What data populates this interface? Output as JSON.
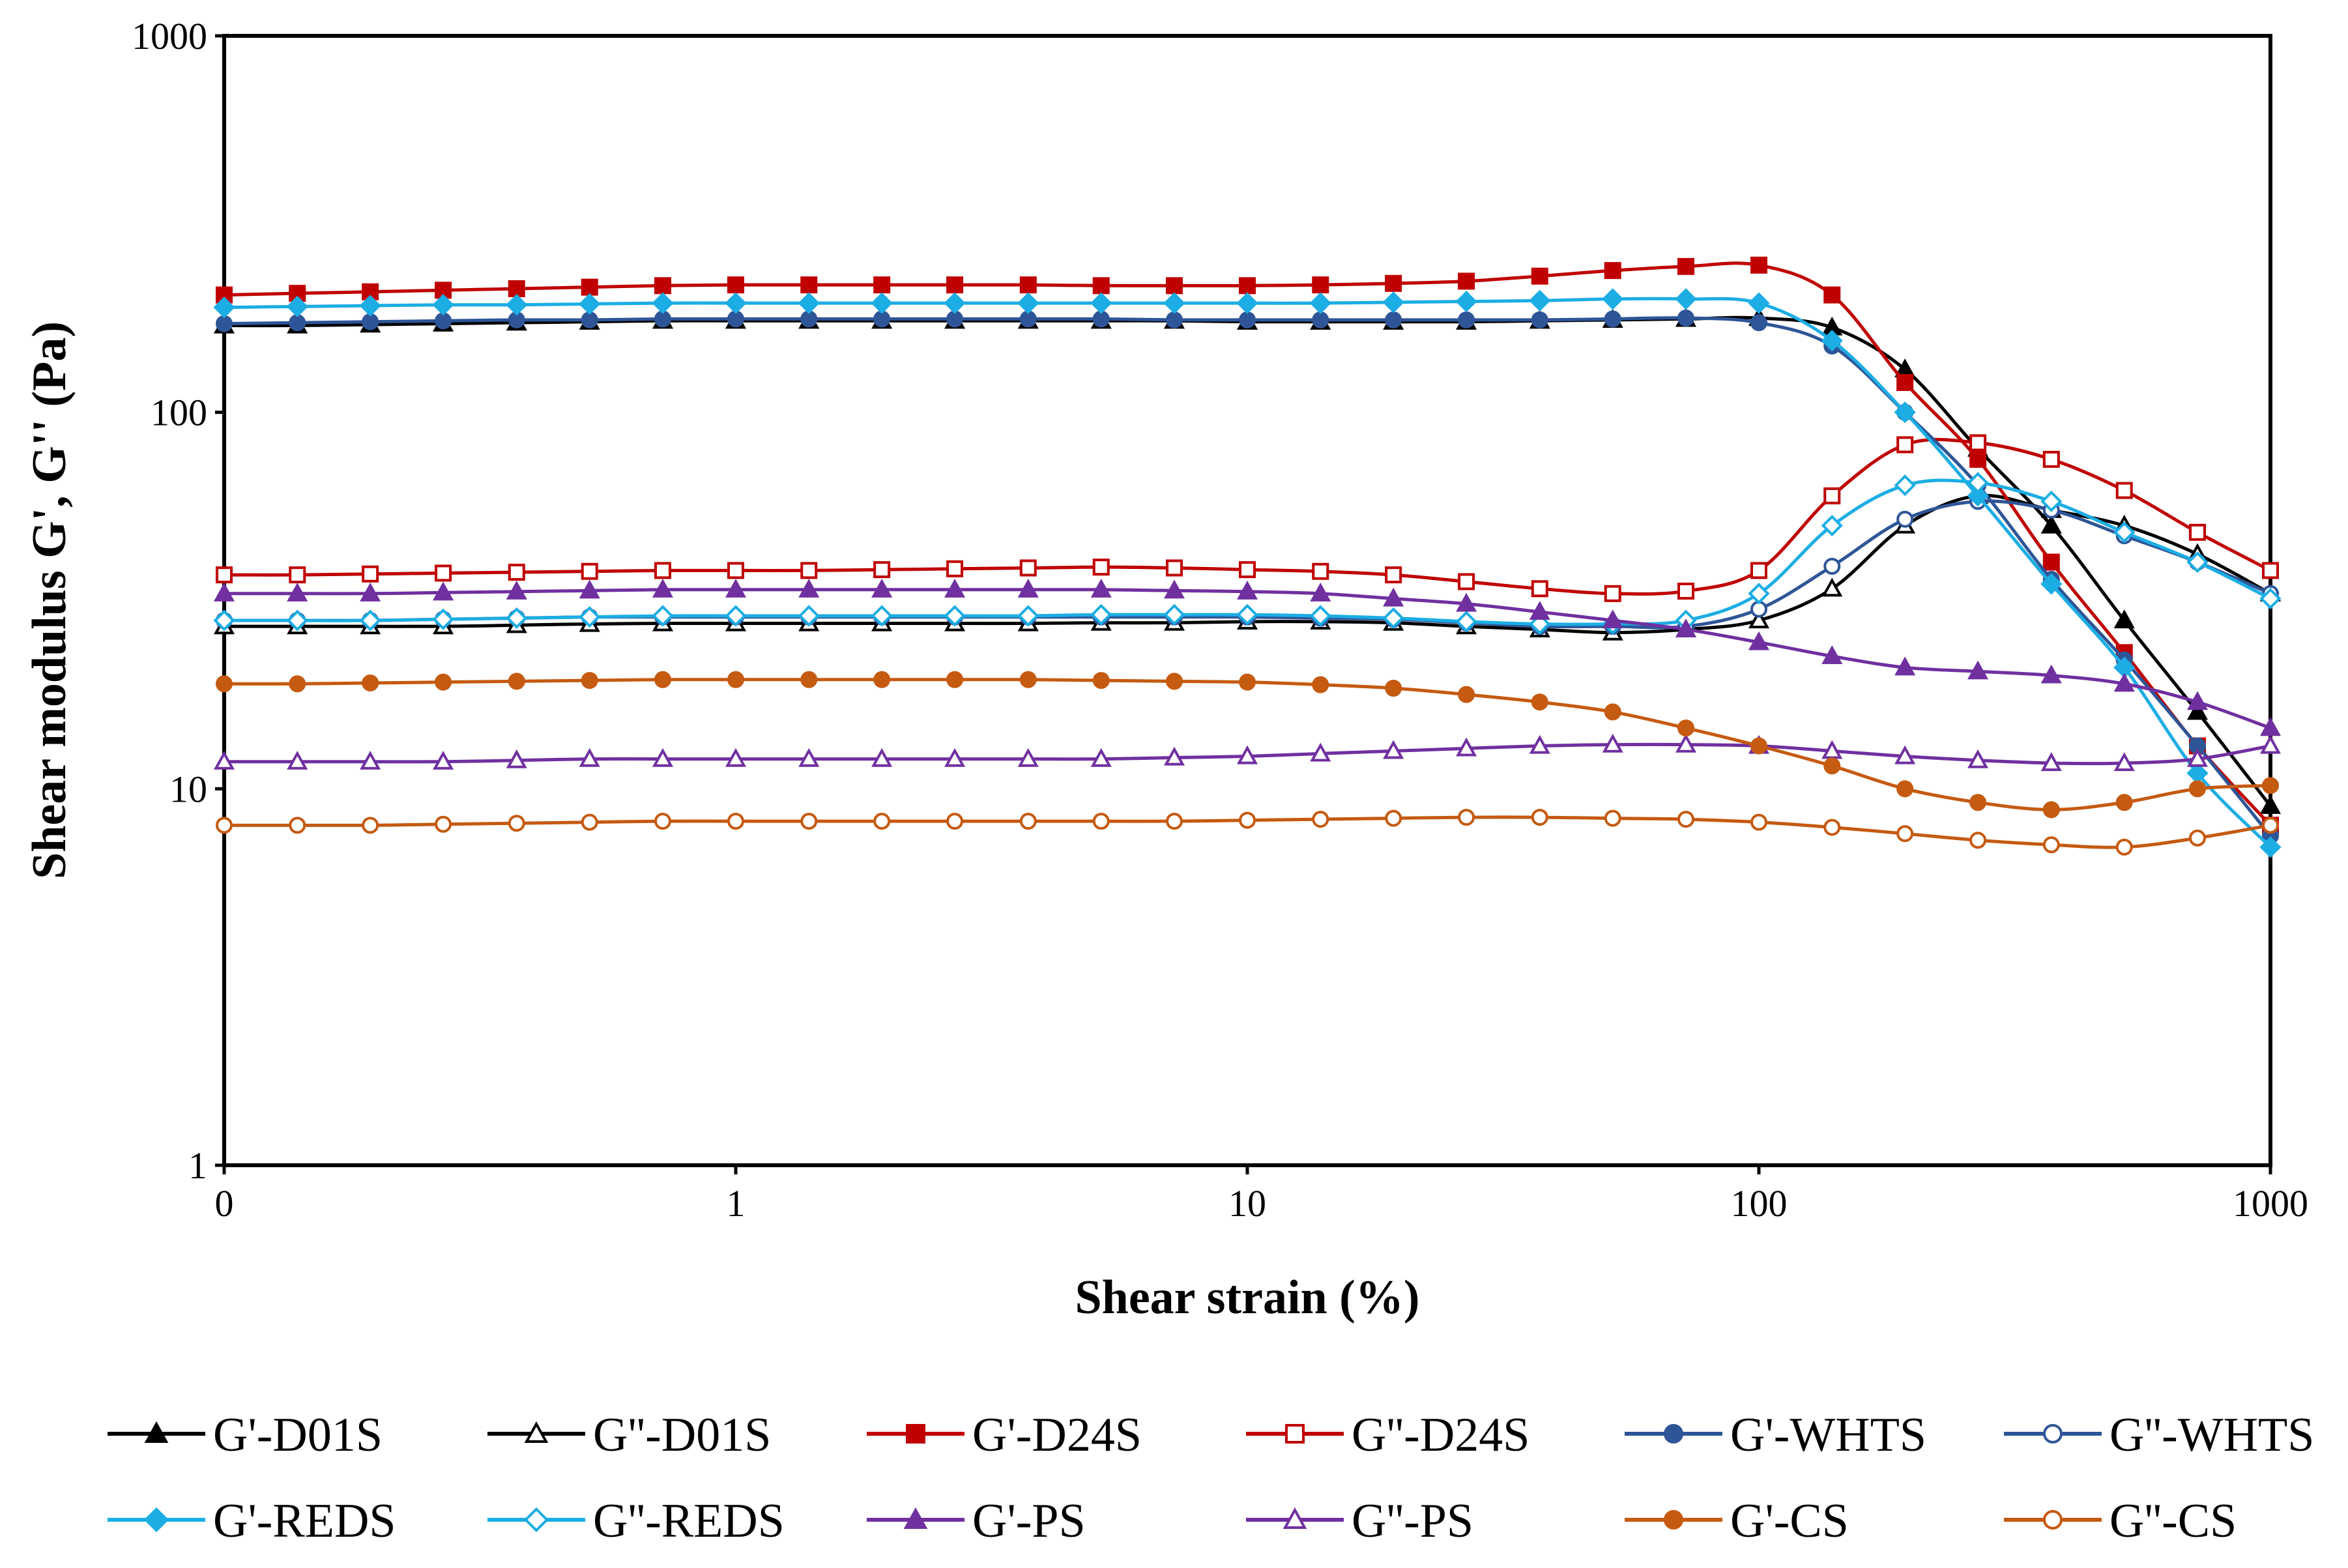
{
  "chart_data": {
    "type": "line",
    "title": "",
    "xlabel": "Shear strain (%)",
    "ylabel": "Shear modulus G', G'' (Pa)",
    "xscale": "log",
    "yscale": "log",
    "xlim": [
      0.1,
      1000
    ],
    "ylim": [
      1,
      1000
    ],
    "x_tick_labels": [
      "0",
      "1",
      "10",
      "100",
      "1000"
    ],
    "y_tick_labels": [
      "1",
      "10",
      "100",
      "1000"
    ],
    "grid": false,
    "legend_position": "bottom",
    "x": [
      0.1,
      0.139,
      0.193,
      0.268,
      0.373,
      0.518,
      0.72,
      1,
      1.39,
      1.93,
      2.68,
      3.73,
      5.18,
      7.2,
      10,
      13.9,
      19.3,
      26.8,
      37.3,
      51.8,
      72,
      100,
      139,
      193,
      268,
      373,
      518,
      720,
      1000
    ],
    "series": [
      {
        "name": "G'-D01S",
        "color": "#000000",
        "marker": "triangle",
        "filled": true,
        "values": [
          170,
          170,
          171,
          172,
          173,
          174,
          175,
          175,
          175,
          175,
          175,
          175,
          175,
          175,
          174,
          174,
          174,
          174,
          175,
          176,
          177,
          178,
          168,
          130,
          80,
          50,
          28,
          16,
          9
        ]
      },
      {
        "name": "G''-D01S",
        "color": "#000000",
        "marker": "triangle",
        "filled": false,
        "values": [
          27,
          27,
          27,
          27,
          27.2,
          27.4,
          27.5,
          27.5,
          27.5,
          27.5,
          27.5,
          27.5,
          27.6,
          27.6,
          27.8,
          27.8,
          27.6,
          27,
          26.5,
          26,
          26.5,
          28,
          34,
          50,
          60,
          55,
          50,
          42,
          33
        ]
      },
      {
        "name": "G'-D24S",
        "color": "#C00000",
        "marker": "square",
        "filled": true,
        "values": [
          205,
          207,
          209,
          211,
          213,
          215,
          217,
          218,
          218,
          218,
          218,
          218,
          217,
          217,
          217,
          218,
          220,
          223,
          230,
          238,
          244,
          246,
          205,
          120,
          75,
          40,
          23,
          13,
          8
        ]
      },
      {
        "name": "G''-D24S",
        "color": "#C00000",
        "marker": "square",
        "filled": false,
        "values": [
          37,
          37,
          37.2,
          37.4,
          37.6,
          37.8,
          38,
          38,
          38,
          38.2,
          38.4,
          38.6,
          38.8,
          38.6,
          38.2,
          37.8,
          37,
          35.5,
          34,
          33,
          33.5,
          38,
          60,
          82,
          83,
          75,
          62,
          48,
          38
        ]
      },
      {
        "name": "G'-WHTS",
        "color": "#2E5597",
        "marker": "circle",
        "filled": true,
        "values": [
          172,
          173,
          174,
          175,
          176,
          176,
          177,
          177,
          177,
          177,
          177,
          177,
          177,
          176,
          176,
          176,
          176,
          176,
          176,
          177,
          178,
          173,
          150,
          100,
          64,
          36,
          22,
          13,
          7.5
        ]
      },
      {
        "name": "G''-WHTS",
        "color": "#2E5597",
        "marker": "circle",
        "filled": false,
        "values": [
          28,
          28,
          28,
          28.2,
          28.4,
          28.6,
          28.6,
          28.6,
          28.6,
          28.6,
          28.6,
          28.6,
          28.6,
          28.6,
          28.6,
          28.4,
          28.2,
          27.6,
          27,
          27,
          27,
          30,
          39,
          52,
          58,
          55,
          47,
          40,
          33
        ]
      },
      {
        "name": "G'-REDS",
        "color": "#1CADE4",
        "marker": "diamond",
        "filled": true,
        "values": [
          190,
          191,
          192,
          193,
          193,
          194,
          195,
          195,
          195,
          195,
          195,
          195,
          195,
          195,
          195,
          195,
          196,
          197,
          198,
          200,
          200,
          195,
          155,
          100,
          60,
          35,
          21,
          11,
          7
        ]
      },
      {
        "name": "G''-REDS",
        "color": "#1CADE4",
        "marker": "diamond",
        "filled": false,
        "values": [
          28,
          28,
          28,
          28.2,
          28.4,
          28.6,
          28.8,
          28.8,
          28.8,
          28.8,
          28.8,
          28.8,
          29,
          29,
          29,
          28.8,
          28.4,
          27.8,
          27.4,
          27.4,
          28,
          33,
          50,
          64,
          65,
          58,
          48,
          40,
          32
        ]
      },
      {
        "name": "G'-PS",
        "color": "#7030A0",
        "marker": "triangle",
        "filled": true,
        "values": [
          33,
          33,
          33,
          33.2,
          33.4,
          33.6,
          33.8,
          33.8,
          33.8,
          33.8,
          33.8,
          33.8,
          33.8,
          33.6,
          33.4,
          33,
          32,
          31,
          29.5,
          28,
          26.5,
          24.5,
          22.5,
          21,
          20.5,
          20,
          19,
          17,
          14.5
        ]
      },
      {
        "name": "G''-PS",
        "color": "#7030A0",
        "marker": "triangle",
        "filled": false,
        "values": [
          11.8,
          11.8,
          11.8,
          11.8,
          11.9,
          12,
          12,
          12,
          12,
          12,
          12,
          12,
          12,
          12.1,
          12.2,
          12.4,
          12.6,
          12.8,
          13,
          13.1,
          13.1,
          13,
          12.6,
          12.2,
          11.9,
          11.7,
          11.7,
          12,
          13
        ]
      },
      {
        "name": "G'-CS",
        "color": "#C55A11",
        "marker": "circle",
        "filled": true,
        "values": [
          19,
          19,
          19.1,
          19.2,
          19.3,
          19.4,
          19.5,
          19.5,
          19.5,
          19.5,
          19.5,
          19.5,
          19.4,
          19.3,
          19.2,
          18.9,
          18.5,
          17.8,
          17,
          16,
          14.5,
          13,
          11.5,
          10,
          9.2,
          8.8,
          9.2,
          10,
          10.2
        ]
      },
      {
        "name": "G''-CS",
        "color": "#C55A11",
        "marker": "circle",
        "filled": false,
        "values": [
          8,
          8,
          8,
          8.05,
          8.1,
          8.15,
          8.2,
          8.2,
          8.2,
          8.2,
          8.2,
          8.2,
          8.2,
          8.2,
          8.25,
          8.3,
          8.35,
          8.4,
          8.4,
          8.35,
          8.3,
          8.15,
          7.9,
          7.6,
          7.3,
          7.1,
          7,
          7.4,
          8
        ]
      }
    ]
  }
}
